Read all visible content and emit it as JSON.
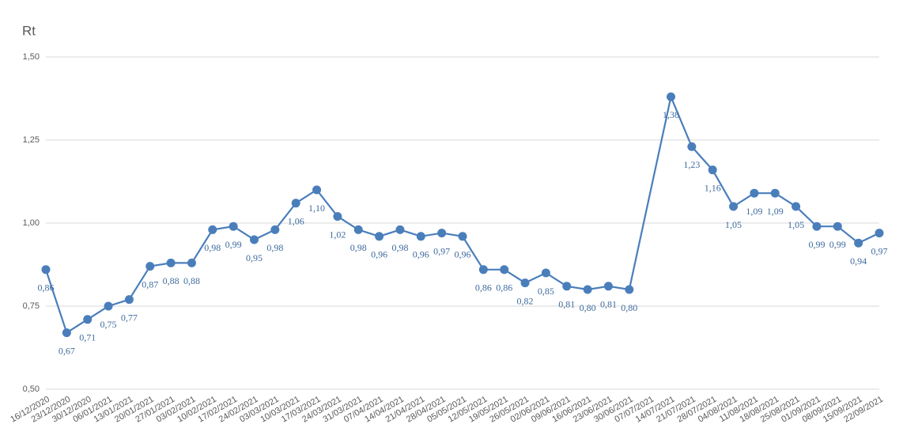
{
  "chart_data": {
    "type": "line",
    "y_axis_label": "Rt",
    "categories": [
      "16/12/2020",
      "23/12/2020",
      "30/12/2020",
      "06/01/2021",
      "13/01/2021",
      "20/01/2021",
      "27/01/2021",
      "03/02/2021",
      "10/02/2021",
      "17/02/2021",
      "24/02/2021",
      "03/03/2021",
      "10/03/2021",
      "17/03/2021",
      "24/03/2021",
      "31/03/2021",
      "07/04/2021",
      "14/04/2021",
      "21/04/2021",
      "28/04/2021",
      "05/05/2021",
      "12/05/2021",
      "19/05/2021",
      "26/05/2021",
      "02/06/2021",
      "09/06/2021",
      "16/06/2021",
      "23/06/2021",
      "30/06/2021",
      "07/07/2021",
      "14/07/2021",
      "21/07/2021",
      "28/07/2021",
      "04/08/2021",
      "11/08/2021",
      "18/08/2021",
      "25/08/2021",
      "01/09/2021",
      "08/09/2021",
      "15/09/2021",
      "22/09/2021"
    ],
    "values": [
      0.86,
      0.67,
      0.71,
      0.75,
      0.77,
      0.87,
      0.88,
      0.88,
      0.98,
      0.99,
      0.95,
      0.98,
      1.06,
      1.1,
      1.02,
      0.98,
      0.96,
      0.98,
      0.96,
      0.97,
      0.96,
      0.86,
      0.86,
      0.82,
      0.85,
      0.81,
      0.8,
      0.81,
      0.8,
      null,
      1.38,
      1.23,
      1.16,
      1.05,
      1.09,
      1.09,
      1.05,
      0.99,
      0.99,
      0.94,
      0.97
    ],
    "value_labels": [
      "0,86",
      "0,67",
      "0,71",
      "0,75",
      "0,77",
      "0,87",
      "0,88",
      "0,88",
      "0,98",
      "0,99",
      "0,95",
      "0,98",
      "1,06",
      "1,10",
      "1,02",
      "0,98",
      "0,96",
      "0,98",
      "0,96",
      "0,97",
      "0,96",
      "0,86",
      "0,86",
      "0,82",
      "0,85",
      "0,81",
      "0,80",
      "0,81",
      "0,80",
      null,
      "1,38",
      "1,23",
      "1,16",
      "1,05",
      "1,09",
      "1,09",
      "1,05",
      "0,99",
      "0,99",
      "0,94",
      "0,97"
    ],
    "color": "#4a7ebb",
    "span_gaps": true,
    "ylim": [
      0.5,
      1.5
    ],
    "yticks": [
      {
        "value": 0.5,
        "label": "0,50"
      },
      {
        "value": 0.75,
        "label": "0,75"
      },
      {
        "value": 1.0,
        "label": "1,00"
      },
      {
        "value": 1.25,
        "label": "1,25"
      },
      {
        "value": 1.5,
        "label": "1,50"
      }
    ],
    "grid": true
  }
}
